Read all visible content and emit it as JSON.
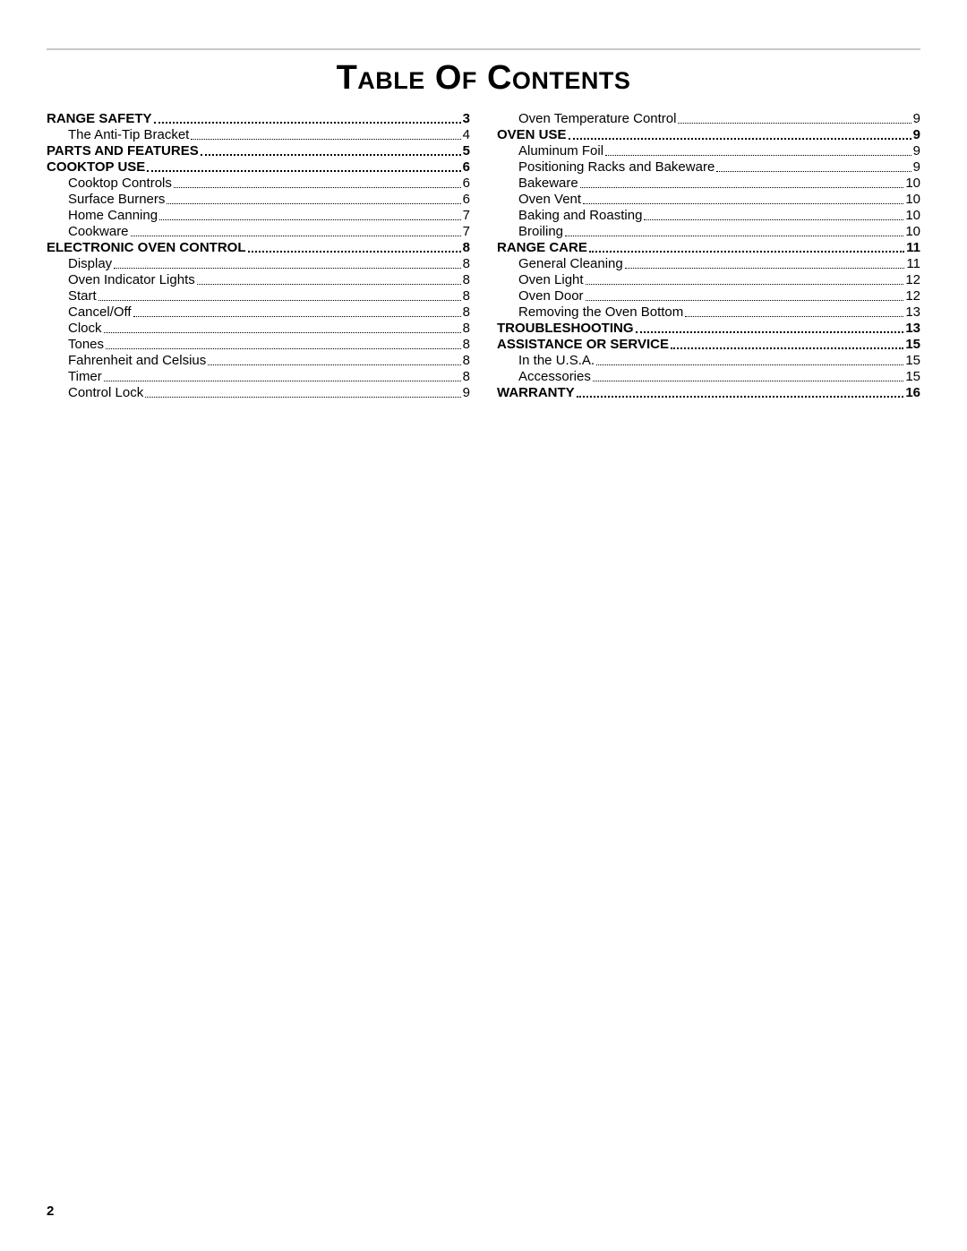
{
  "title": "Table Of Contents",
  "page_number": "2",
  "colors": {
    "rule": "#c8c8c8",
    "text": "#000000",
    "bg": "#ffffff"
  },
  "typography": {
    "title_fontsize": 38,
    "body_fontsize": 15,
    "font_family": "Arial"
  },
  "left": [
    {
      "label": "Range Safety",
      "page": "3",
      "kind": "section"
    },
    {
      "label": "The Anti-Tip Bracket",
      "page": "4",
      "kind": "sub"
    },
    {
      "label": "Parts And Features",
      "page": "5",
      "kind": "section"
    },
    {
      "label": "Cooktop Use",
      "page": "6",
      "kind": "section"
    },
    {
      "label": "Cooktop Controls",
      "page": "6",
      "kind": "sub"
    },
    {
      "label": "Surface Burners",
      "page": "6",
      "kind": "sub"
    },
    {
      "label": "Home Canning",
      "page": "7",
      "kind": "sub"
    },
    {
      "label": "Cookware",
      "page": "7",
      "kind": "sub"
    },
    {
      "label": "Electronic Oven Control",
      "page": "8",
      "kind": "section"
    },
    {
      "label": "Display",
      "page": "8",
      "kind": "sub"
    },
    {
      "label": "Oven Indicator Lights",
      "page": "8",
      "kind": "sub"
    },
    {
      "label": "Start",
      "page": "8",
      "kind": "sub"
    },
    {
      "label": "Cancel/Off",
      "page": "8",
      "kind": "sub"
    },
    {
      "label": "Clock",
      "page": "8",
      "kind": "sub"
    },
    {
      "label": "Tones",
      "page": "8",
      "kind": "sub"
    },
    {
      "label": "Fahrenheit and Celsius",
      "page": "8",
      "kind": "sub"
    },
    {
      "label": "Timer",
      "page": "8",
      "kind": "sub"
    },
    {
      "label": "Control Lock",
      "page": "9",
      "kind": "sub"
    }
  ],
  "right": [
    {
      "label": "Oven Temperature Control",
      "page": "9",
      "kind": "sub"
    },
    {
      "label": "Oven Use",
      "page": "9",
      "kind": "section"
    },
    {
      "label": "Aluminum Foil",
      "page": "9",
      "kind": "sub"
    },
    {
      "label": "Positioning Racks and Bakeware",
      "page": "9",
      "kind": "sub"
    },
    {
      "label": "Bakeware",
      "page": "10",
      "kind": "sub"
    },
    {
      "label": "Oven Vent",
      "page": "10",
      "kind": "sub"
    },
    {
      "label": "Baking and Roasting",
      "page": "10",
      "kind": "sub"
    },
    {
      "label": "Broiling",
      "page": "10",
      "kind": "sub"
    },
    {
      "label": "Range Care",
      "page": "11",
      "kind": "section"
    },
    {
      "label": "General Cleaning",
      "page": "11",
      "kind": "sub"
    },
    {
      "label": "Oven Light",
      "page": "12",
      "kind": "sub"
    },
    {
      "label": "Oven Door",
      "page": "12",
      "kind": "sub"
    },
    {
      "label": "Removing the Oven Bottom",
      "page": "13",
      "kind": "sub"
    },
    {
      "label": "Troubleshooting",
      "page": "13",
      "kind": "section"
    },
    {
      "label": "Assistance Or Service",
      "page": "15",
      "kind": "section"
    },
    {
      "label": "In the U.S.A.",
      "page": "15",
      "kind": "sub"
    },
    {
      "label": "Accessories",
      "page": "15",
      "kind": "sub"
    },
    {
      "label": "Warranty",
      "page": "16",
      "kind": "section"
    }
  ]
}
